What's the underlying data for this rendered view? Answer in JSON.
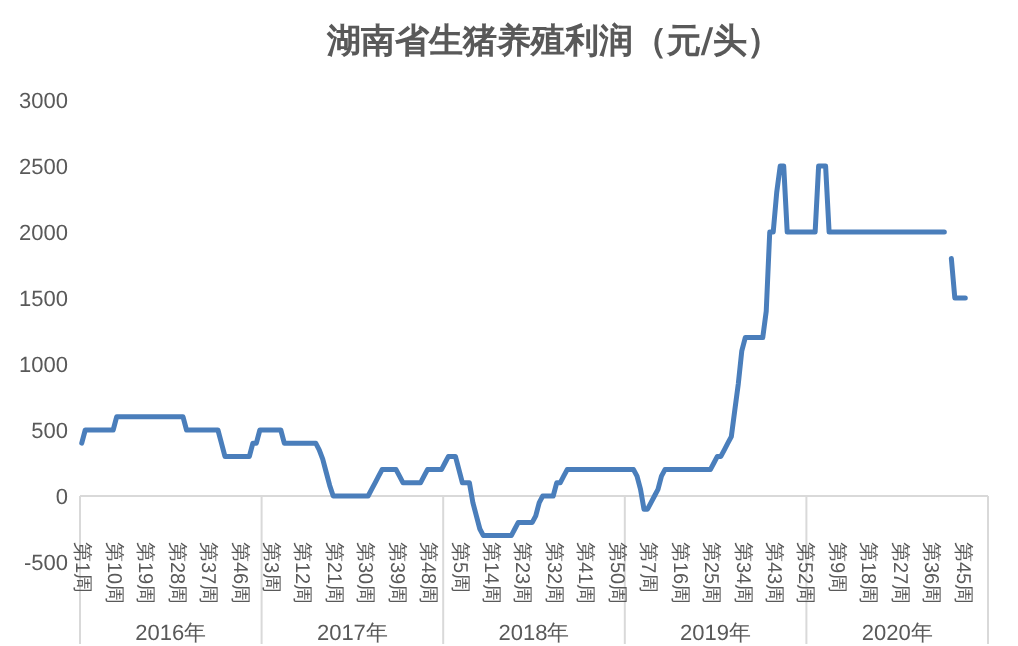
{
  "chart_data": {
    "type": "line",
    "title": "湖南省生猪养殖利润（元/头）",
    "categories": [
      "第1周",
      null,
      null,
      null,
      null,
      null,
      null,
      null,
      null,
      "第10周",
      null,
      null,
      null,
      null,
      null,
      null,
      null,
      null,
      "第19周",
      null,
      null,
      null,
      null,
      null,
      null,
      null,
      null,
      "第28周",
      null,
      null,
      null,
      null,
      null,
      null,
      null,
      null,
      "第37周",
      null,
      null,
      null,
      null,
      null,
      null,
      null,
      null,
      "第46周",
      null,
      null,
      null,
      null,
      null,
      null,
      null,
      null,
      "第3周",
      null,
      null,
      null,
      null,
      null,
      null,
      null,
      null,
      "第12周",
      null,
      null,
      null,
      null,
      null,
      null,
      null,
      null,
      "第21周",
      null,
      null,
      null,
      null,
      null,
      null,
      null,
      null,
      "第30周",
      null,
      null,
      null,
      null,
      null,
      null,
      null,
      null,
      "第39周",
      null,
      null,
      null,
      null,
      null,
      null,
      null,
      null,
      "第48周",
      null,
      null,
      null,
      null,
      null,
      null,
      null,
      null,
      "第5周",
      null,
      null,
      null,
      null,
      null,
      null,
      null,
      null,
      "第14周",
      null,
      null,
      null,
      null,
      null,
      null,
      null,
      null,
      "第23周",
      null,
      null,
      null,
      null,
      null,
      null,
      null,
      null,
      "第32周",
      null,
      null,
      null,
      null,
      null,
      null,
      null,
      null,
      "第41周",
      null,
      null,
      null,
      null,
      null,
      null,
      null,
      null,
      "第50周",
      null,
      null,
      null,
      null,
      null,
      null,
      null,
      null,
      "第7周",
      null,
      null,
      null,
      null,
      null,
      null,
      null,
      null,
      "第16周",
      null,
      null,
      null,
      null,
      null,
      null,
      null,
      null,
      "第25周",
      null,
      null,
      null,
      null,
      null,
      null,
      null,
      null,
      "第34周",
      null,
      null,
      null,
      null,
      null,
      null,
      null,
      null,
      "第43周",
      null,
      null,
      null,
      null,
      null,
      null,
      null,
      null,
      "第52周",
      null,
      null,
      null,
      null,
      null,
      null,
      null,
      null,
      "第9周",
      null,
      null,
      null,
      null,
      null,
      null,
      null,
      null,
      "第18周",
      null,
      null,
      null,
      null,
      null,
      null,
      null,
      null,
      "第27周",
      null,
      null,
      null,
      null,
      null,
      null,
      null,
      null,
      "第36周",
      null,
      null,
      null,
      null,
      null,
      null,
      null,
      null,
      "第45周",
      null,
      null,
      null,
      null,
      null,
      null,
      null
    ],
    "series": [
      {
        "color": "#4a7ebb",
        "values": [
          400,
          500,
          500,
          500,
          500,
          500,
          500,
          500,
          500,
          500,
          600,
          600,
          600,
          600,
          600,
          600,
          600,
          600,
          600,
          600,
          600,
          600,
          600,
          600,
          600,
          600,
          600,
          600,
          600,
          600,
          500,
          500,
          500,
          500,
          500,
          500,
          500,
          500,
          500,
          500,
          400,
          300,
          300,
          300,
          300,
          300,
          300,
          300,
          300,
          400,
          400,
          500,
          500,
          500,
          500,
          500,
          500,
          500,
          400,
          400,
          400,
          400,
          400,
          400,
          400,
          400,
          400,
          400,
          350,
          280,
          180,
          80,
          0,
          0,
          0,
          0,
          0,
          0,
          0,
          0,
          0,
          0,
          0,
          50,
          100,
          150,
          200,
          200,
          200,
          200,
          200,
          150,
          100,
          100,
          100,
          100,
          100,
          100,
          150,
          200,
          200,
          200,
          200,
          200,
          250,
          300,
          300,
          300,
          200,
          100,
          100,
          100,
          -50,
          -150,
          -250,
          -300,
          -300,
          -300,
          -300,
          -300,
          -300,
          -300,
          -300,
          -300,
          -250,
          -200,
          -200,
          -200,
          -200,
          -200,
          -150,
          -50,
          0,
          0,
          0,
          0,
          100,
          100,
          150,
          200,
          200,
          200,
          200,
          200,
          200,
          200,
          200,
          200,
          200,
          200,
          200,
          200,
          200,
          200,
          200,
          200,
          200,
          200,
          200,
          150,
          50,
          -100,
          -100,
          -50,
          0,
          50,
          150,
          200,
          200,
          200,
          200,
          200,
          200,
          200,
          200,
          200,
          200,
          200,
          200,
          200,
          200,
          250,
          300,
          300,
          350,
          400,
          450,
          650,
          850,
          1100,
          1200,
          1200,
          1200,
          1200,
          1200,
          1200,
          1400,
          2000,
          2000,
          2300,
          2500,
          2500,
          2000,
          2000,
          2000,
          2000,
          2000,
          2000,
          2000,
          2000,
          2000,
          2500,
          2500,
          2500,
          2000,
          2000,
          2000,
          2000,
          2000,
          2000,
          2000,
          2000,
          2000,
          2000,
          2000,
          2000,
          2000,
          2000,
          2000,
          2000,
          2000,
          2000,
          2000,
          2000,
          2000,
          2000,
          2000,
          2000,
          2000,
          2000,
          2000,
          2000,
          2000,
          2000,
          2000,
          2000,
          2000,
          2000,
          null,
          1800,
          1500,
          1500,
          1500,
          1500,
          null,
          null,
          null,
          null,
          null,
          null
        ]
      }
    ],
    "ylim": [
      -500,
      3000
    ],
    "yticks": [
      -500,
      0,
      500,
      1000,
      1500,
      2000,
      2500,
      3000
    ],
    "grid": false,
    "marker": "none",
    "line_style": "solid",
    "annotations": [
      "2016年",
      "2017年",
      "2018年",
      "2019年",
      "2020年"
    ]
  }
}
